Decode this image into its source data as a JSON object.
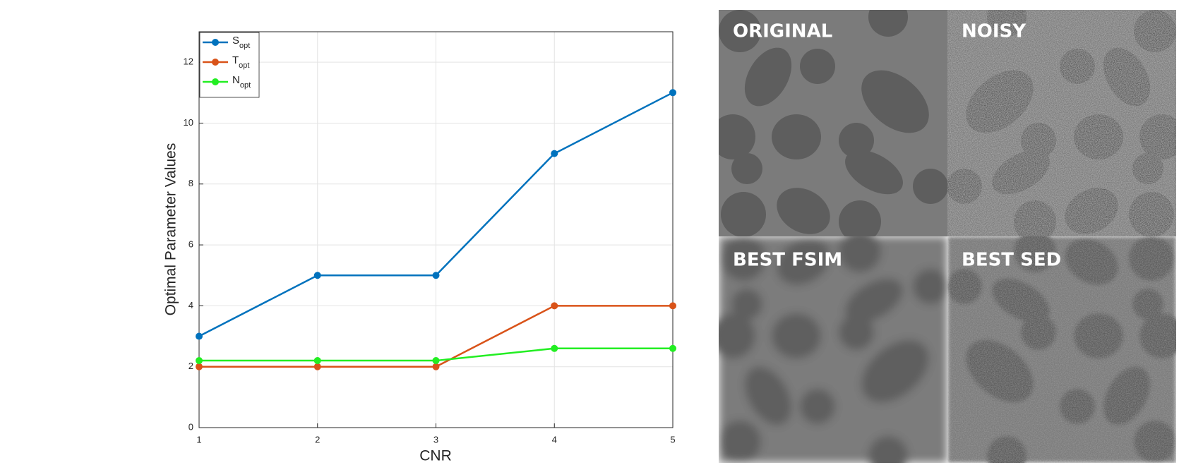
{
  "chart_data": {
    "type": "line",
    "xlabel": "CNR",
    "ylabel": "Optimal Parameter Values",
    "x": [
      1,
      2,
      3,
      4,
      5
    ],
    "xlim": [
      1,
      5
    ],
    "xticks": [
      1,
      2,
      3,
      4,
      5
    ],
    "ylim": [
      0,
      13
    ],
    "yticks": [
      0,
      2,
      4,
      6,
      8,
      10,
      12
    ],
    "grid": true,
    "legend": "upper-left",
    "series": [
      {
        "name": "Sopt",
        "color": "#0072bd",
        "values": [
          3,
          5,
          5,
          9,
          11
        ]
      },
      {
        "name": "Topt",
        "color": "#d95319",
        "values": [
          2,
          2,
          2,
          4,
          4
        ]
      },
      {
        "name": "Nopt",
        "color": "#22ee22",
        "values": [
          2.2,
          2.2,
          2.2,
          2.6,
          2.6
        ]
      }
    ]
  },
  "panels": [
    "ORIGINAL",
    "NOISY",
    "BEST FSIM",
    "BEST SED"
  ]
}
